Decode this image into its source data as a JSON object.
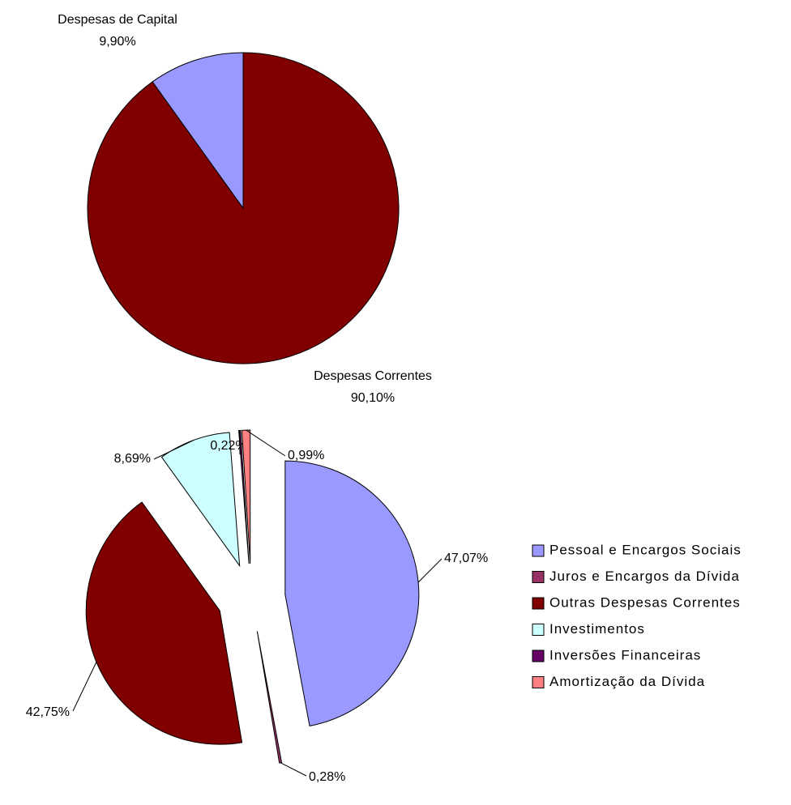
{
  "chart_data": [
    {
      "type": "pie",
      "categories": [
        "Despesas Correntes",
        "Despesas de Capital"
      ],
      "values": [
        90.1,
        9.9
      ],
      "value_labels": [
        "90,10%",
        "9,90%"
      ],
      "colors": [
        "#800000",
        "#9999ff"
      ]
    },
    {
      "type": "pie",
      "categories": [
        "Pessoal e Encargos Sociais",
        "Juros e Encargos da Dívida",
        "Outras Despesas Correntes",
        "Investimentos",
        "Inversões Financeiras",
        "Amortização da Dívida"
      ],
      "values": [
        47.07,
        0.28,
        42.75,
        8.69,
        0.22,
        0.99
      ],
      "value_labels": [
        "47,07%",
        "0,28%",
        "42,75%",
        "8,69%",
        "0,22%",
        "0,99%"
      ],
      "colors": [
        "#9999ff",
        "#993366",
        "#800000",
        "#ccffff",
        "#660066",
        "#ff8080"
      ],
      "legend": "right"
    }
  ]
}
